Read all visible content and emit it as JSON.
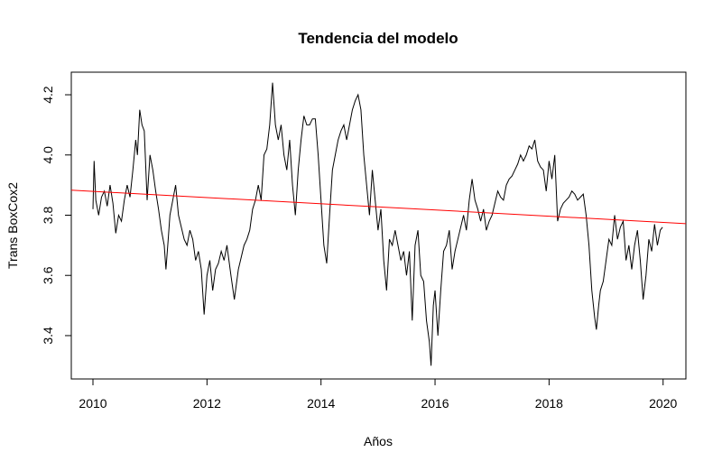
{
  "chart_data": {
    "type": "line",
    "title": "Tendencia del modelo",
    "xlabel": "Años",
    "ylabel": "Trans BoxCox2",
    "xlim": [
      2009.62,
      2020.4
    ],
    "ylim": [
      3.256,
      4.275
    ],
    "xticks": [
      2010,
      2012,
      2014,
      2016,
      2018,
      2020
    ],
    "yticks": [
      3.4,
      3.6,
      3.8,
      {
        "value": 4,
        "label": "4.0"
      },
      4.2
    ],
    "grid": false,
    "series": [
      {
        "color": "#000000",
        "x": [
          2010.0,
          2010.02,
          2010.05,
          2010.1,
          2010.15,
          2010.2,
          2010.25,
          2010.3,
          2010.35,
          2010.4,
          2010.45,
          2010.5,
          2010.55,
          2010.6,
          2010.65,
          2010.7,
          2010.75,
          2010.78,
          2010.82,
          2010.86,
          2010.9,
          2010.95,
          2011.0,
          2011.05,
          2011.1,
          2011.15,
          2011.2,
          2011.25,
          2011.28,
          2011.32,
          2011.35,
          2011.4,
          2011.45,
          2011.5,
          2011.55,
          2011.6,
          2011.65,
          2011.7,
          2011.75,
          2011.8,
          2011.85,
          2011.9,
          2011.95,
          2012.0,
          2012.05,
          2012.1,
          2012.15,
          2012.2,
          2012.25,
          2012.3,
          2012.35,
          2012.42,
          2012.48,
          2012.55,
          2012.6,
          2012.65,
          2012.7,
          2012.75,
          2012.8,
          2012.85,
          2012.9,
          2012.95,
          2013.0,
          2013.05,
          2013.1,
          2013.15,
          2013.2,
          2013.25,
          2013.3,
          2013.35,
          2013.4,
          2013.45,
          2013.5,
          2013.55,
          2013.6,
          2013.65,
          2013.7,
          2013.75,
          2013.8,
          2013.85,
          2013.9,
          2013.95,
          2014.0,
          2014.05,
          2014.1,
          2014.15,
          2014.2,
          2014.25,
          2014.3,
          2014.35,
          2014.4,
          2014.45,
          2014.5,
          2014.55,
          2014.6,
          2014.65,
          2014.7,
          2014.75,
          2014.8,
          2014.85,
          2014.9,
          2014.95,
          2015.0,
          2015.05,
          2015.1,
          2015.15,
          2015.2,
          2015.25,
          2015.3,
          2015.35,
          2015.4,
          2015.45,
          2015.5,
          2015.55,
          2015.6,
          2015.65,
          2015.7,
          2015.75,
          2015.8,
          2015.85,
          2015.9,
          2015.93,
          2015.97,
          2016.0,
          2016.05,
          2016.1,
          2016.15,
          2016.2,
          2016.25,
          2016.3,
          2016.35,
          2016.4,
          2016.45,
          2016.5,
          2016.55,
          2016.6,
          2016.65,
          2016.7,
          2016.75,
          2016.8,
          2016.85,
          2016.9,
          2016.95,
          2017.0,
          2017.05,
          2017.1,
          2017.15,
          2017.2,
          2017.25,
          2017.3,
          2017.35,
          2017.4,
          2017.45,
          2017.5,
          2017.55,
          2017.6,
          2017.65,
          2017.7,
          2017.75,
          2017.8,
          2017.85,
          2017.9,
          2017.95,
          2018.0,
          2018.05,
          2018.1,
          2018.15,
          2018.2,
          2018.25,
          2018.3,
          2018.35,
          2018.4,
          2018.45,
          2018.5,
          2018.55,
          2018.6,
          2018.65,
          2018.7,
          2018.75,
          2018.8,
          2018.83,
          2018.87,
          2018.9,
          2018.95,
          2019.0,
          2019.05,
          2019.1,
          2019.15,
          2019.2,
          2019.25,
          2019.3,
          2019.35,
          2019.4,
          2019.45,
          2019.5,
          2019.55,
          2019.6,
          2019.65,
          2019.7,
          2019.75,
          2019.8,
          2019.85,
          2019.9,
          2019.95,
          2019.99
        ],
        "values": [
          3.82,
          3.98,
          3.85,
          3.8,
          3.86,
          3.88,
          3.83,
          3.9,
          3.84,
          3.74,
          3.8,
          3.78,
          3.85,
          3.9,
          3.86,
          3.95,
          4.05,
          4.0,
          4.15,
          4.1,
          4.08,
          3.85,
          4.0,
          3.95,
          3.88,
          3.82,
          3.75,
          3.7,
          3.62,
          3.72,
          3.8,
          3.85,
          3.9,
          3.8,
          3.76,
          3.72,
          3.7,
          3.75,
          3.72,
          3.65,
          3.68,
          3.62,
          3.47,
          3.6,
          3.65,
          3.55,
          3.62,
          3.64,
          3.68,
          3.65,
          3.7,
          3.6,
          3.52,
          3.62,
          3.66,
          3.7,
          3.72,
          3.75,
          3.82,
          3.85,
          3.9,
          3.85,
          4.0,
          4.02,
          4.1,
          4.24,
          4.1,
          4.05,
          4.1,
          4.0,
          3.95,
          4.05,
          3.9,
          3.8,
          3.95,
          4.05,
          4.13,
          4.1,
          4.1,
          4.12,
          4.12,
          4.0,
          3.85,
          3.7,
          3.64,
          3.8,
          3.95,
          4.0,
          4.05,
          4.08,
          4.1,
          4.05,
          4.1,
          4.15,
          4.18,
          4.2,
          4.15,
          4.0,
          3.9,
          3.8,
          3.95,
          3.85,
          3.75,
          3.82,
          3.65,
          3.55,
          3.72,
          3.7,
          3.75,
          3.7,
          3.65,
          3.68,
          3.6,
          3.68,
          3.45,
          3.7,
          3.75,
          3.6,
          3.58,
          3.45,
          3.38,
          3.3,
          3.5,
          3.55,
          3.4,
          3.55,
          3.68,
          3.7,
          3.75,
          3.62,
          3.68,
          3.72,
          3.76,
          3.8,
          3.75,
          3.85,
          3.92,
          3.85,
          3.82,
          3.78,
          3.82,
          3.75,
          3.78,
          3.8,
          3.84,
          3.88,
          3.86,
          3.85,
          3.9,
          3.92,
          3.93,
          3.95,
          3.97,
          4.0,
          3.98,
          4.0,
          4.03,
          4.02,
          4.05,
          3.98,
          3.96,
          3.95,
          3.88,
          3.98,
          3.92,
          4.0,
          3.78,
          3.82,
          3.84,
          3.85,
          3.86,
          3.88,
          3.87,
          3.85,
          3.86,
          3.87,
          3.8,
          3.7,
          3.55,
          3.46,
          3.42,
          3.5,
          3.55,
          3.58,
          3.65,
          3.72,
          3.7,
          3.8,
          3.72,
          3.76,
          3.78,
          3.65,
          3.7,
          3.62,
          3.7,
          3.75,
          3.65,
          3.52,
          3.6,
          3.72,
          3.68,
          3.77,
          3.7,
          3.75,
          3.76
        ]
      },
      {
        "color": "#ff0000",
        "x": [
          2009.62,
          2020.4
        ],
        "values": [
          3.883,
          3.772
        ]
      }
    ]
  }
}
